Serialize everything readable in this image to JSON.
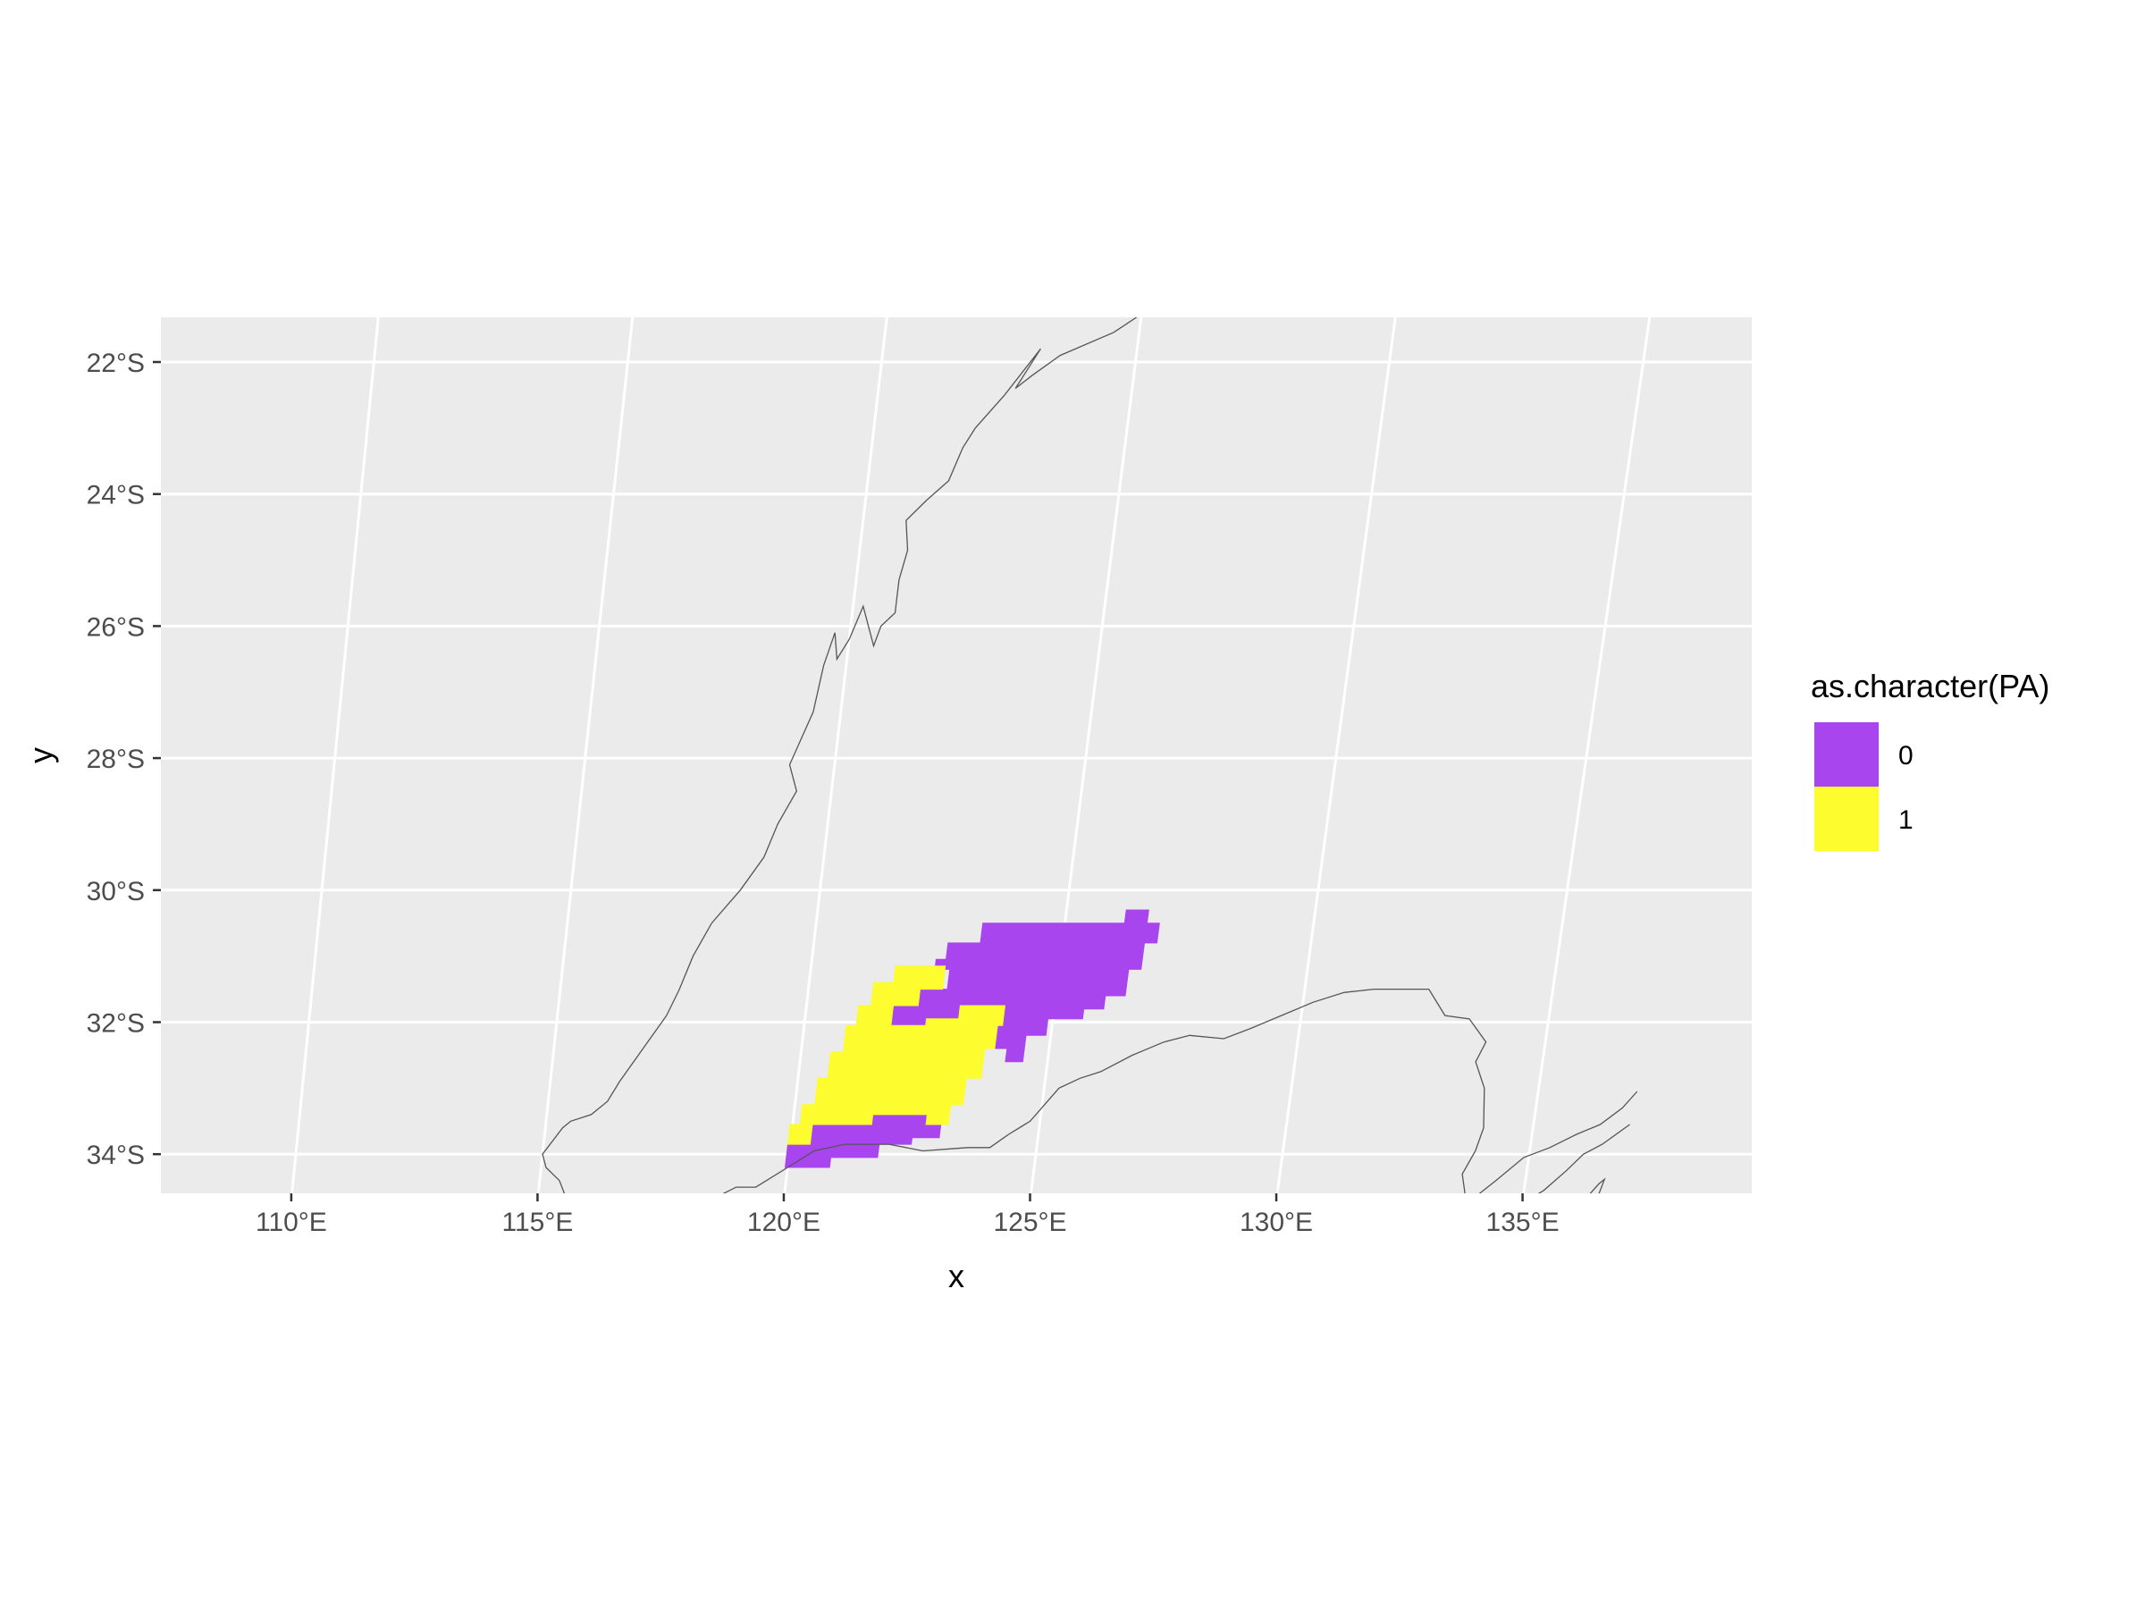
{
  "chart_data": {
    "type": "heatmap",
    "map": "raster presence/absence map with coastline",
    "xlabel": "x",
    "ylabel": "y",
    "xlim": [
      107.2,
      139.4
    ],
    "ylim": [
      -34.7,
      -21.3
    ],
    "x_ticks": [
      {
        "value": 110,
        "label": "110°E"
      },
      {
        "value": 115,
        "label": "115°E"
      },
      {
        "value": 120,
        "label": "120°E"
      },
      {
        "value": 125,
        "label": "125°E"
      },
      {
        "value": 130,
        "label": "130°E"
      },
      {
        "value": 135,
        "label": "135°E"
      }
    ],
    "y_ticks": [
      {
        "value": -22,
        "label": "22°S"
      },
      {
        "value": -24,
        "label": "24°S"
      },
      {
        "value": -26,
        "label": "26°S"
      },
      {
        "value": -28,
        "label": "28°S"
      },
      {
        "value": -30,
        "label": "30°S"
      },
      {
        "value": -32,
        "label": "32°S"
      },
      {
        "value": -34,
        "label": "34°S"
      }
    ],
    "grid": true,
    "panel_background": "#EBEBEB",
    "legend": {
      "title": "as.character(PA)",
      "position": "right",
      "entries": [
        {
          "label": "0",
          "color": "#A945EE"
        },
        {
          "label": "1",
          "color": "#FCFC2E"
        }
      ]
    },
    "regions": [
      {
        "class": "0",
        "color": "#A945EE",
        "polygon": [
          [
            126.2,
            -30.3
          ],
          [
            126.65,
            -30.3
          ],
          [
            126.65,
            -30.5
          ],
          [
            126.9,
            -30.5
          ],
          [
            126.9,
            -30.8
          ],
          [
            126.65,
            -30.8
          ],
          [
            126.65,
            -31.2
          ],
          [
            126.4,
            -31.2
          ],
          [
            126.4,
            -31.6
          ],
          [
            126.0,
            -31.6
          ],
          [
            126.0,
            -31.8
          ],
          [
            125.6,
            -31.8
          ],
          [
            125.6,
            -31.95
          ],
          [
            124.9,
            -31.95
          ],
          [
            124.9,
            -32.2
          ],
          [
            124.5,
            -32.2
          ],
          [
            124.5,
            -32.6
          ],
          [
            124.15,
            -32.6
          ],
          [
            124.15,
            -32.4
          ],
          [
            123.9,
            -32.4
          ],
          [
            123.9,
            -32.05
          ],
          [
            124.0,
            -32.05
          ],
          [
            124.0,
            -31.75
          ],
          [
            123.1,
            -31.75
          ],
          [
            123.1,
            -31.95
          ],
          [
            122.45,
            -31.95
          ],
          [
            122.45,
            -32.05
          ],
          [
            121.75,
            -32.05
          ],
          [
            121.75,
            -31.75
          ],
          [
            122.25,
            -31.75
          ],
          [
            122.25,
            -31.5
          ],
          [
            122.8,
            -31.5
          ],
          [
            122.8,
            -31.2
          ],
          [
            122.5,
            -31.2
          ],
          [
            122.5,
            -31.05
          ],
          [
            122.7,
            -31.05
          ],
          [
            122.7,
            -30.8
          ],
          [
            123.35,
            -30.8
          ],
          [
            123.35,
            -30.5
          ],
          [
            126.2,
            -30.5
          ]
        ]
      },
      {
        "class": "0",
        "color": "#A945EE",
        "polygon": [
          [
            121.6,
            -33.4
          ],
          [
            122.7,
            -33.4
          ],
          [
            122.7,
            -33.55
          ],
          [
            123.0,
            -33.55
          ],
          [
            123.0,
            -33.75
          ],
          [
            122.45,
            -33.75
          ],
          [
            122.45,
            -33.85
          ],
          [
            121.8,
            -33.85
          ],
          [
            121.8,
            -34.05
          ],
          [
            120.85,
            -34.05
          ],
          [
            120.85,
            -34.2
          ],
          [
            119.95,
            -34.2
          ],
          [
            119.95,
            -33.85
          ],
          [
            120.4,
            -33.85
          ],
          [
            120.4,
            -33.55
          ],
          [
            121.6,
            -33.55
          ]
        ]
      },
      {
        "class": "1",
        "color": "#FCFC2E",
        "polygon": [
          [
            121.7,
            -31.15
          ],
          [
            122.7,
            -31.15
          ],
          [
            122.7,
            -31.5
          ],
          [
            122.25,
            -31.5
          ],
          [
            122.25,
            -31.75
          ],
          [
            121.75,
            -31.75
          ],
          [
            121.75,
            -32.05
          ],
          [
            122.45,
            -32.05
          ],
          [
            122.45,
            -31.95
          ],
          [
            123.1,
            -31.95
          ],
          [
            123.1,
            -31.75
          ],
          [
            124.0,
            -31.75
          ],
          [
            124.0,
            -32.05
          ],
          [
            123.9,
            -32.05
          ],
          [
            123.9,
            -32.4
          ],
          [
            123.7,
            -32.4
          ],
          [
            123.7,
            -32.85
          ],
          [
            123.4,
            -32.85
          ],
          [
            123.4,
            -33.25
          ],
          [
            123.15,
            -33.25
          ],
          [
            123.15,
            -33.55
          ],
          [
            122.7,
            -33.55
          ],
          [
            122.7,
            -33.4
          ],
          [
            121.6,
            -33.4
          ],
          [
            121.6,
            -33.55
          ],
          [
            120.4,
            -33.55
          ],
          [
            120.4,
            -33.85
          ],
          [
            119.95,
            -33.85
          ],
          [
            119.95,
            -33.55
          ],
          [
            120.15,
            -33.55
          ],
          [
            120.15,
            -33.25
          ],
          [
            120.4,
            -33.25
          ],
          [
            120.4,
            -32.85
          ],
          [
            120.6,
            -32.85
          ],
          [
            120.6,
            -32.45
          ],
          [
            120.85,
            -32.45
          ],
          [
            120.85,
            -32.05
          ],
          [
            121.05,
            -32.05
          ],
          [
            121.05,
            -31.75
          ],
          [
            121.3,
            -31.75
          ],
          [
            121.3,
            -31.4
          ],
          [
            121.7,
            -31.4
          ]
        ]
      }
    ],
    "coastline": [
      [
        [
          124.95,
          -21.3
        ],
        [
          124.5,
          -21.55
        ],
        [
          123.5,
          -21.9
        ],
        [
          123.0,
          -22.2
        ],
        [
          122.7,
          -22.4
        ],
        [
          123.1,
          -21.8
        ],
        [
          122.5,
          -22.5
        ],
        [
          122.0,
          -23.0
        ],
        [
          121.8,
          -23.3
        ],
        [
          121.6,
          -23.8
        ],
        [
          121.2,
          -24.1
        ],
        [
          120.85,
          -24.4
        ],
        [
          120.95,
          -24.85
        ],
        [
          120.85,
          -25.3
        ],
        [
          120.85,
          -25.8
        ],
        [
          120.6,
          -26.0
        ],
        [
          120.5,
          -26.3
        ],
        [
          120.2,
          -25.7
        ],
        [
          120.0,
          -26.2
        ],
        [
          119.8,
          -26.5
        ],
        [
          119.7,
          -26.1
        ],
        [
          119.55,
          -26.6
        ],
        [
          119.45,
          -27.3
        ],
        [
          119.1,
          -28.1
        ],
        [
          119.3,
          -28.5
        ],
        [
          119.0,
          -29.0
        ],
        [
          118.8,
          -29.5
        ],
        [
          118.4,
          -30.0
        ],
        [
          117.9,
          -30.5
        ],
        [
          117.6,
          -31.0
        ],
        [
          117.4,
          -31.5
        ],
        [
          117.2,
          -31.9
        ],
        [
          116.8,
          -32.4
        ],
        [
          116.4,
          -32.9
        ],
        [
          116.2,
          -33.2
        ],
        [
          115.9,
          -33.4
        ],
        [
          115.5,
          -33.5
        ],
        [
          115.35,
          -33.6
        ],
        [
          115.0,
          -34.0
        ],
        [
          115.1,
          -34.2
        ],
        [
          115.4,
          -34.4
        ],
        [
          115.6,
          -34.7
        ]
      ],
      [
        [
          118.5,
          -34.7
        ],
        [
          119.0,
          -34.5
        ],
        [
          119.4,
          -34.5
        ],
        [
          120.0,
          -34.2
        ],
        [
          120.5,
          -33.95
        ],
        [
          121.1,
          -33.85
        ],
        [
          122.0,
          -33.85
        ],
        [
          122.7,
          -33.95
        ],
        [
          123.6,
          -33.9
        ],
        [
          124.05,
          -33.9
        ],
        [
          124.4,
          -33.7
        ],
        [
          124.8,
          -33.5
        ],
        [
          125.3,
          -33.0
        ],
        [
          125.7,
          -32.85
        ],
        [
          126.1,
          -32.75
        ],
        [
          126.7,
          -32.5
        ],
        [
          127.3,
          -32.3
        ],
        [
          127.8,
          -32.2
        ],
        [
          128.5,
          -32.25
        ],
        [
          129.0,
          -32.1
        ],
        [
          129.6,
          -31.9
        ],
        [
          130.2,
          -31.7
        ],
        [
          130.8,
          -31.55
        ],
        [
          131.4,
          -31.5
        ],
        [
          132.0,
          -31.5
        ],
        [
          132.5,
          -31.5
        ],
        [
          132.9,
          -31.9
        ],
        [
          133.4,
          -31.95
        ],
        [
          133.8,
          -32.3
        ],
        [
          133.65,
          -32.6
        ],
        [
          133.9,
          -33.0
        ],
        [
          134.0,
          -33.6
        ],
        [
          133.9,
          -33.95
        ],
        [
          133.7,
          -34.3
        ],
        [
          133.85,
          -34.7
        ]
      ],
      [
        [
          133.95,
          -34.7
        ],
        [
          134.4,
          -34.4
        ],
        [
          134.9,
          -34.05
        ],
        [
          135.4,
          -33.9
        ],
        [
          135.9,
          -33.7
        ],
        [
          136.35,
          -33.55
        ],
        [
          136.75,
          -33.3
        ],
        [
          137.0,
          -33.05
        ]
      ],
      [
        [
          135.1,
          -34.7
        ],
        [
          135.4,
          -34.55
        ],
        [
          135.8,
          -34.25
        ],
        [
          136.1,
          -34.0
        ],
        [
          136.45,
          -33.85
        ],
        [
          136.95,
          -33.55
        ]
      ],
      [
        [
          136.25,
          -34.7
        ],
        [
          136.5,
          -34.45
        ],
        [
          136.6,
          -34.38
        ],
        [
          136.5,
          -34.7
        ]
      ]
    ]
  }
}
